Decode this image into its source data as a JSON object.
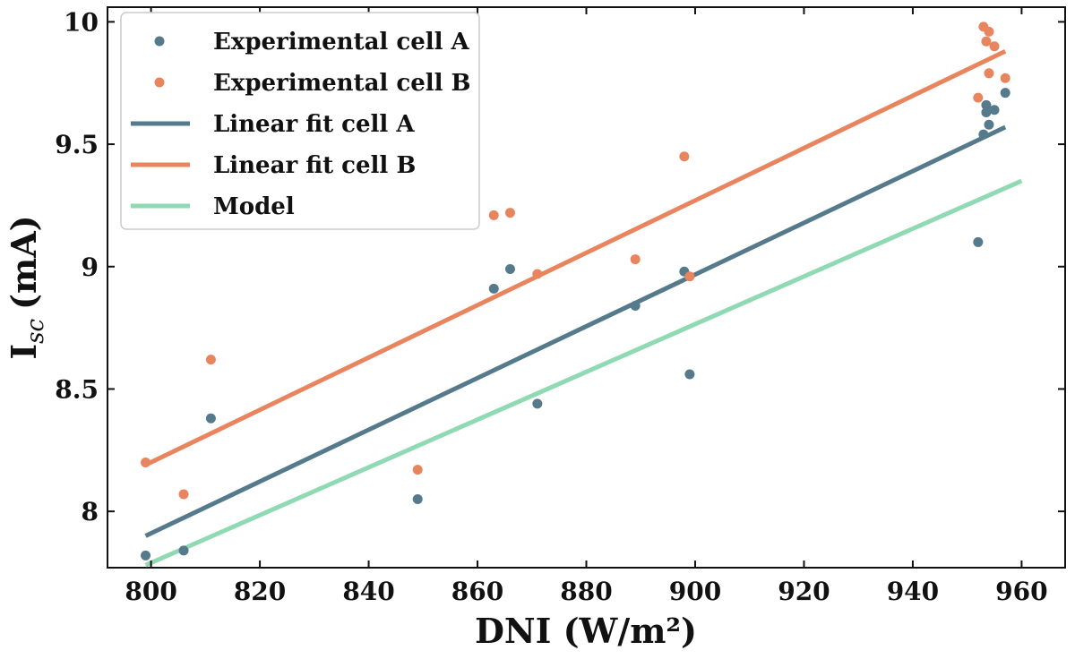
{
  "chart_data": {
    "type": "scatter",
    "title": "",
    "xlabel": "DNI (W/m²)",
    "ylabel_main": "I",
    "ylabel_sub": "sc",
    "ylabel_unit": "(mA)",
    "xlim": [
      792,
      968
    ],
    "ylim": [
      7.77,
      10.06
    ],
    "xticks": [
      800,
      820,
      840,
      860,
      880,
      900,
      920,
      940,
      960
    ],
    "yticks": [
      8,
      8.5,
      9,
      9.5,
      10
    ],
    "ytick_labels": [
      "8",
      "8.5",
      "9",
      "9.5",
      "10"
    ],
    "grid": false,
    "legend_position": "top-left",
    "series": [
      {
        "name": "Experimental cell A",
        "kind": "scatter",
        "color": "#557a8c",
        "points": [
          [
            799,
            7.82
          ],
          [
            806,
            7.84
          ],
          [
            811,
            8.38
          ],
          [
            849,
            8.05
          ],
          [
            863,
            8.91
          ],
          [
            866,
            8.99
          ],
          [
            871,
            8.44
          ],
          [
            889,
            8.84
          ],
          [
            898,
            8.98
          ],
          [
            899,
            8.56
          ],
          [
            952,
            9.1
          ],
          [
            953,
            9.54
          ],
          [
            953.5,
            9.63
          ],
          [
            953.5,
            9.66
          ],
          [
            954,
            9.58
          ],
          [
            955,
            9.64
          ],
          [
            957,
            9.71
          ]
        ]
      },
      {
        "name": "Experimental cell B",
        "kind": "scatter",
        "color": "#e8855e",
        "points": [
          [
            799,
            8.2
          ],
          [
            806,
            8.07
          ],
          [
            811,
            8.62
          ],
          [
            849,
            8.17
          ],
          [
            863,
            9.21
          ],
          [
            866,
            9.22
          ],
          [
            871,
            8.97
          ],
          [
            889,
            9.03
          ],
          [
            898,
            9.45
          ],
          [
            899,
            8.96
          ],
          [
            952,
            9.69
          ],
          [
            953,
            9.98
          ],
          [
            953.5,
            9.92
          ],
          [
            954,
            9.96
          ],
          [
            954,
            9.79
          ],
          [
            955,
            9.9
          ],
          [
            957,
            9.77
          ]
        ]
      },
      {
        "name": "Linear fit cell A",
        "kind": "line",
        "color": "#557a8c",
        "points": [
          [
            799,
            7.9
          ],
          [
            957,
            9.57
          ]
        ]
      },
      {
        "name": "Linear fit cell B",
        "kind": "line",
        "color": "#e8855e",
        "points": [
          [
            799,
            8.19
          ],
          [
            957,
            9.88
          ]
        ]
      },
      {
        "name": "Model",
        "kind": "line",
        "color": "#8fd9b3",
        "points": [
          [
            799,
            7.78
          ],
          [
            960,
            9.35
          ]
        ]
      }
    ]
  }
}
